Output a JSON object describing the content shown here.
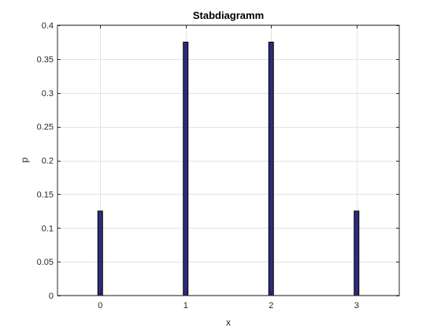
{
  "chart_data": {
    "type": "bar",
    "title": "Stabdiagramm",
    "xlabel": "x",
    "ylabel": "p",
    "categories": [
      "0",
      "1",
      "2",
      "3"
    ],
    "x": [
      0,
      1,
      2,
      3
    ],
    "values": [
      0.125,
      0.375,
      0.375,
      0.125
    ],
    "xlim": [
      -0.5,
      3.5
    ],
    "ylim": [
      0,
      0.4
    ],
    "xticks": [
      0,
      1,
      2,
      3
    ],
    "xtick_labels": [
      "0",
      "1",
      "2",
      "3"
    ],
    "yticks": [
      0,
      0.05,
      0.1,
      0.15,
      0.2,
      0.25,
      0.3,
      0.35,
      0.4
    ],
    "ytick_labels": [
      "0",
      "0.05",
      "0.1",
      "0.15",
      "0.2",
      "0.25",
      "0.3",
      "0.35",
      "0.4"
    ],
    "grid": true,
    "bar_color": "#2e2a7a",
    "bar_edge_color": "#000000"
  }
}
